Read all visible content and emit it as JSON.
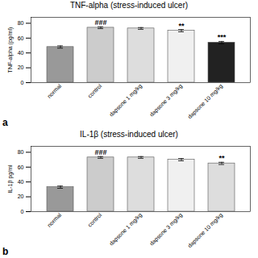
{
  "chart_data": [
    {
      "type": "bar",
      "title": "TNF-alpha (stress-induced ulcer)",
      "panel_label": "a",
      "categories": [
        "normal",
        "control",
        "dapsone 1 mg/kg",
        "dapsone 3 mg/kg",
        "dapsone 10 mg/kg"
      ],
      "values": [
        48,
        74,
        73,
        70,
        54
      ],
      "errors": [
        1.5,
        1.2,
        1.2,
        1.5,
        1.5
      ],
      "colors": [
        "#999999",
        "#cccccc",
        "#dddddd",
        "#f0f0f0",
        "#222222"
      ],
      "ylabel": "TNF-alpha (pg/ml)",
      "ylim": [
        0,
        88
      ],
      "yticks": [
        0,
        20,
        40,
        60,
        80
      ],
      "annotations": [
        {
          "text": "###",
          "category": "control"
        },
        {
          "text": "**",
          "category": "dapsone 3 mg/kg"
        },
        {
          "text": "***",
          "category": "dapsone 10 mg/kg"
        }
      ]
    },
    {
      "type": "bar",
      "title": "IL-1β (stress-induced ulcer)",
      "panel_label": "b",
      "categories": [
        "normal",
        "control",
        "dapsone 1 mg/kg",
        "dapsone 3 mg/kg",
        "dapsone 10 mg/kg"
      ],
      "values": [
        33,
        73,
        73,
        70,
        65
      ],
      "errors": [
        1.5,
        1.2,
        1.2,
        1.5,
        1.5
      ],
      "colors": [
        "#999999",
        "#cccccc",
        "#dddddd",
        "#f0f0f0",
        "#dddddd"
      ],
      "ylabel": "IL-1β pg/ml",
      "ylim": [
        0,
        88
      ],
      "yticks": [
        0,
        20,
        40,
        60,
        80
      ],
      "annotations": [
        {
          "text": "###",
          "category": "control"
        },
        {
          "text": "**",
          "category": "dapsone 10 mg/kg"
        }
      ]
    }
  ]
}
